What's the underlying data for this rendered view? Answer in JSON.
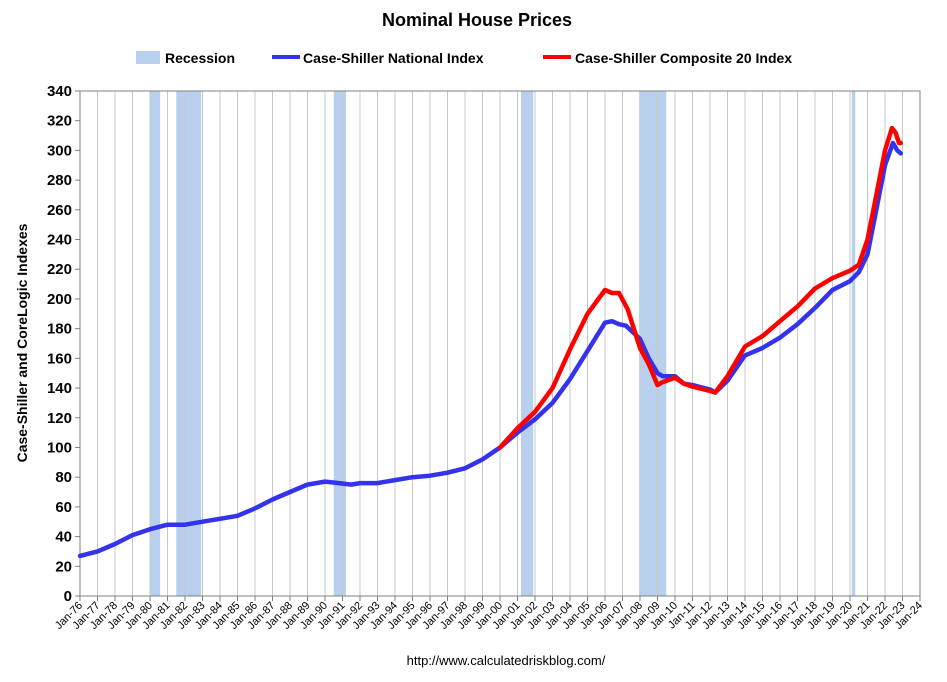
{
  "chart_data": {
    "type": "line",
    "title": "Nominal House Prices",
    "ylabel": "Case-Shiller and CoreLogic Indexes",
    "xlabel": "",
    "source": "http://www.calculatedriskblog.com/",
    "ylim": [
      0,
      340
    ],
    "y_ticks": [
      0,
      20,
      40,
      60,
      80,
      100,
      120,
      140,
      160,
      180,
      200,
      220,
      240,
      260,
      280,
      300,
      320,
      340
    ],
    "xlim": [
      1976.0,
      2024.0
    ],
    "x_tick_labels": [
      "Jan-76",
      "Jan-77",
      "Jan-78",
      "Jan-79",
      "Jan-80",
      "Jan-81",
      "Jan-82",
      "Jan-83",
      "Jan-84",
      "Jan-85",
      "Jan-86",
      "Jan-87",
      "Jan-88",
      "Jan-89",
      "Jan-90",
      "Jan-91",
      "Jan-92",
      "Jan-93",
      "Jan-94",
      "Jan-95",
      "Jan-96",
      "Jan-97",
      "Jan-98",
      "Jan-99",
      "Jan-00",
      "Jan-01",
      "Jan-02",
      "Jan-03",
      "Jan-04",
      "Jan-05",
      "Jan-06",
      "Jan-07",
      "Jan-08",
      "Jan-09",
      "Jan-10",
      "Jan-11",
      "Jan-12",
      "Jan-13",
      "Jan-14",
      "Jan-15",
      "Jan-16",
      "Jan-17",
      "Jan-18",
      "Jan-19",
      "Jan-20",
      "Jan-21",
      "Jan-22",
      "Jan-23",
      "Jan-24"
    ],
    "grid": "vertical",
    "legend_position": "top",
    "recession_legend": {
      "name": "Recession",
      "color": "#b8d0ee"
    },
    "recessions": [
      {
        "start": 1980.0,
        "end": 1980.58
      },
      {
        "start": 1981.5,
        "end": 1982.92
      },
      {
        "start": 1990.5,
        "end": 1991.2
      },
      {
        "start": 2001.2,
        "end": 2001.9
      },
      {
        "start": 2007.95,
        "end": 2009.5
      },
      {
        "start": 2020.1,
        "end": 2020.3
      }
    ],
    "series": [
      {
        "name": "Case-Shiller National Index",
        "color": "#3333ee",
        "x": [
          1976.0,
          1977.0,
          1978.0,
          1979.0,
          1980.0,
          1981.0,
          1982.0,
          1983.0,
          1984.0,
          1985.0,
          1986.0,
          1987.0,
          1988.0,
          1989.0,
          1990.0,
          1990.8,
          1991.5,
          1992.0,
          1993.0,
          1994.0,
          1995.0,
          1996.0,
          1997.0,
          1998.0,
          1999.0,
          2000.0,
          2001.0,
          2002.0,
          2003.0,
          2004.0,
          2005.0,
          2006.0,
          2006.4,
          2006.8,
          2007.2,
          2008.0,
          2008.5,
          2009.0,
          2009.3,
          2010.0,
          2010.5,
          2011.0,
          2012.0,
          2012.3,
          2013.0,
          2014.0,
          2015.0,
          2016.0,
          2017.0,
          2018.0,
          2019.0,
          2020.0,
          2020.5,
          2021.0,
          2021.5,
          2022.0,
          2022.45,
          2022.7,
          2022.9
        ],
        "y": [
          27,
          30,
          35,
          41,
          45,
          48,
          48,
          50,
          52,
          54,
          59,
          65,
          70,
          75,
          77,
          76,
          75,
          76,
          76,
          78,
          80,
          81,
          83,
          86,
          92,
          100,
          110,
          119,
          130,
          146,
          165,
          184,
          185,
          183,
          182,
          173,
          160,
          150,
          148,
          148,
          143,
          142,
          139,
          137,
          145,
          162,
          167,
          174,
          183,
          194,
          206,
          212,
          218,
          230,
          260,
          290,
          305,
          300,
          298
        ]
      },
      {
        "name": "Case-Shiller Composite 20 Index",
        "color": "#ff0000",
        "x": [
          2000.0,
          2001.0,
          2002.0,
          2003.0,
          2004.0,
          2005.0,
          2006.0,
          2006.4,
          2006.8,
          2007.3,
          2008.0,
          2008.5,
          2009.0,
          2009.3,
          2010.0,
          2010.5,
          2011.0,
          2012.0,
          2012.3,
          2013.0,
          2014.0,
          2015.0,
          2016.0,
          2017.0,
          2018.0,
          2019.0,
          2020.0,
          2020.5,
          2021.0,
          2021.5,
          2022.0,
          2022.4,
          2022.6,
          2022.8,
          2022.9
        ],
        "y": [
          100,
          113,
          124,
          140,
          166,
          190,
          206,
          204,
          204,
          193,
          167,
          156,
          142,
          144,
          147,
          143,
          141,
          138,
          137,
          148,
          168,
          175,
          185,
          195,
          207,
          214,
          219,
          223,
          240,
          270,
          300,
          315,
          312,
          305,
          305
        ]
      }
    ]
  }
}
